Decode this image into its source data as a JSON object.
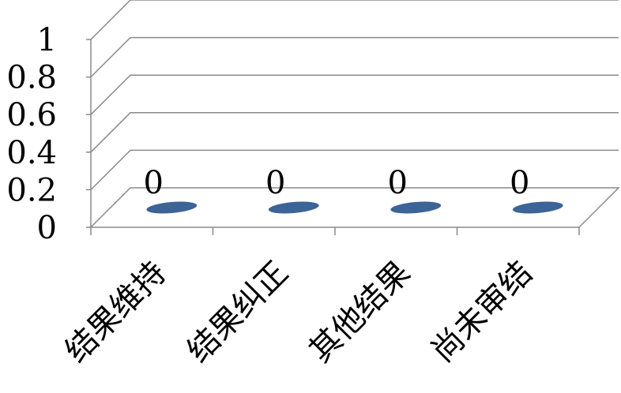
{
  "chart_data": {
    "type": "bar",
    "style": "3d-column",
    "categories": [
      "结果维持",
      "结果纠正",
      "其他结果",
      "尚未审结"
    ],
    "values": [
      0,
      0,
      0,
      0
    ],
    "data_labels": [
      "0",
      "0",
      "0",
      "0"
    ],
    "yticks": [
      "0",
      "0.2",
      "0.4",
      "0.6",
      "0.8",
      "1"
    ],
    "ytick_values": [
      0,
      0.2,
      0.4,
      0.6,
      0.8,
      1
    ],
    "ylim": [
      0,
      1
    ],
    "grid": true,
    "legend": "none",
    "bar_color": "#3c6497",
    "grid_color": "#8a8a8a",
    "title": "",
    "xlabel": "",
    "ylabel": ""
  }
}
